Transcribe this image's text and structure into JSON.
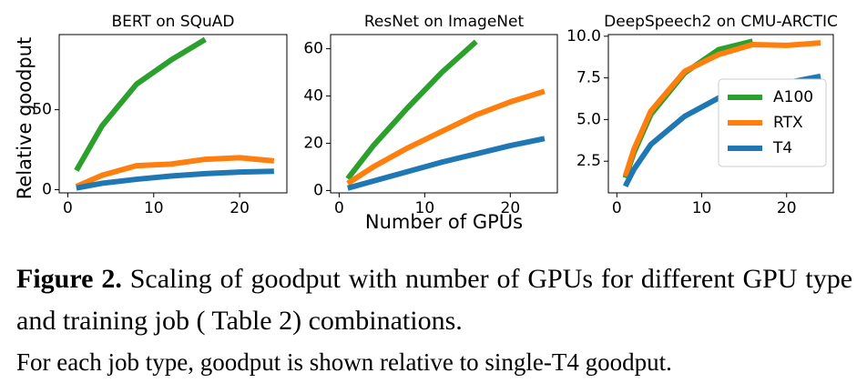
{
  "chart_data": [
    {
      "type": "line",
      "title": "BERT on SQuAD",
      "ylabel": "Relative goodput",
      "x": [
        1,
        4,
        8,
        12,
        16,
        20,
        24
      ],
      "xlim": [
        -1,
        25.5
      ],
      "xticks": [
        0,
        10,
        20
      ],
      "ylim": [
        -2,
        97
      ],
      "yticks": [
        0,
        50
      ],
      "series": [
        {
          "color": "#2ca02c",
          "values": [
            12,
            40,
            66,
            81,
            94,
            null,
            null
          ]
        },
        {
          "color": "#ff7f0e",
          "values": [
            2,
            9,
            15,
            16,
            19,
            20,
            18
          ]
        },
        {
          "color": "#1f77b4",
          "values": [
            1,
            4,
            6.5,
            8.5,
            10,
            11,
            11.5
          ]
        }
      ]
    },
    {
      "type": "line",
      "title": "ResNet on ImageNet",
      "xlabel": "Number of GPUs",
      "x": [
        1,
        4,
        8,
        12,
        16,
        20,
        24
      ],
      "xlim": [
        -1,
        25.5
      ],
      "xticks": [
        0,
        10,
        20
      ],
      "ylim": [
        -1,
        66
      ],
      "yticks": [
        0,
        20,
        40,
        60
      ],
      "series": [
        {
          "color": "#2ca02c",
          "values": [
            5,
            19,
            35,
            50,
            63,
            null,
            null
          ]
        },
        {
          "color": "#ff7f0e",
          "values": [
            3,
            10,
            18,
            25,
            32,
            37.5,
            42
          ]
        },
        {
          "color": "#1f77b4",
          "values": [
            1,
            4,
            8,
            12,
            15.5,
            19,
            22
          ]
        }
      ]
    },
    {
      "type": "line",
      "title": "DeepSpeech2 on CMU-ARCTIC",
      "legend": "center right",
      "x": [
        1,
        2,
        4,
        8,
        12,
        16,
        20,
        24
      ],
      "xlim": [
        -1,
        25.5
      ],
      "xticks": [
        0,
        10,
        20
      ],
      "ylim": [
        0.6,
        10.1
      ],
      "yticks": [
        {
          "value": 2.5,
          "label": "2.5"
        },
        {
          "value": 5,
          "label": "5.0"
        },
        {
          "value": 7.5,
          "label": "7.5"
        },
        {
          "value": 10,
          "label": "10.0"
        }
      ],
      "series": [
        {
          "name": "A100",
          "color": "#2ca02c",
          "values": [
            1.5,
            3,
            5.3,
            7.8,
            9.2,
            9.7,
            null,
            null
          ]
        },
        {
          "name": "RTX",
          "color": "#ff7f0e",
          "values": [
            1.6,
            3.2,
            5.5,
            7.9,
            8.9,
            9.5,
            9.45,
            9.6
          ]
        },
        {
          "name": "T4",
          "color": "#1f77b4",
          "values": [
            1,
            2,
            3.5,
            5.2,
            6.3,
            6.85,
            7.2,
            7.6
          ]
        }
      ]
    }
  ],
  "caption": {
    "label": "Figure 2.",
    "text": "Scaling of goodput with number of GPUs for different GPU type and training job ( Table 2) combinations.",
    "note": "For each job type, goodput is shown relative to single-T4 goodput."
  }
}
